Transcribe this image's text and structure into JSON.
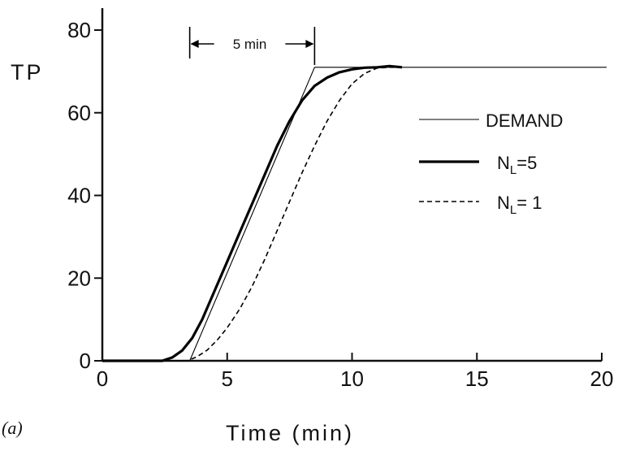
{
  "chart_data": {
    "type": "line",
    "panel_label": "(a)",
    "xlabel": "Time (min)",
    "ylabel": "TP",
    "xlim": [
      0,
      20
    ],
    "ylim": [
      0,
      80
    ],
    "x_ticks": [
      0,
      5,
      10,
      15,
      20
    ],
    "x_tick_labels": [
      "0",
      "5",
      "10",
      "15",
      "20"
    ],
    "y_ticks": [
      0,
      20,
      40,
      60,
      80
    ],
    "y_tick_labels": [
      "0",
      "20",
      "40",
      "60",
      "80"
    ],
    "grid": false,
    "legend_position": "right",
    "annotation": {
      "text": "5 min",
      "x_start": 3.5,
      "x_end": 8.5,
      "style": "dimension arrow between two vertical markers"
    },
    "series": [
      {
        "name": "DEMAND",
        "name_main": "DEMAND",
        "name_sub": "",
        "name_tail": "",
        "style": "thin-solid",
        "x": [
          0,
          3.5,
          8.5,
          20
        ],
        "y": [
          0,
          0,
          71,
          71
        ]
      },
      {
        "name": "NL=5",
        "name_main": "N",
        "name_sub": "L",
        "name_tail": "=5",
        "style": "thick-solid",
        "x": [
          0,
          2.4,
          2.8,
          3.2,
          3.6,
          4.0,
          4.5,
          5.0,
          5.5,
          6.0,
          6.5,
          7.0,
          7.5,
          8.0,
          8.5,
          9.0,
          9.5,
          10.0,
          10.5,
          11.0,
          11.5,
          12.0
        ],
        "y": [
          0,
          0,
          0.8,
          2.5,
          5.5,
          10,
          17,
          24,
          31,
          38,
          45,
          52,
          58,
          63,
          66.5,
          68.5,
          69.8,
          70.5,
          70.9,
          71,
          71.3,
          71
        ]
      },
      {
        "name": "NL= 1",
        "name_main": "N",
        "name_sub": "L",
        "name_tail": "= 1",
        "style": "dashed",
        "x": [
          0,
          3.4,
          3.8,
          4.2,
          4.6,
          5.0,
          5.5,
          6.0,
          6.5,
          7.0,
          7.5,
          8.0,
          8.5,
          9.0,
          9.5,
          10.0,
          10.5,
          11.0,
          11.5,
          12.0
        ],
        "y": [
          0,
          0,
          1,
          2.6,
          5,
          8,
          12.5,
          18,
          24.5,
          31.5,
          38.5,
          45.5,
          52,
          58,
          63,
          67,
          69.5,
          70.8,
          71,
          71
        ]
      }
    ]
  }
}
